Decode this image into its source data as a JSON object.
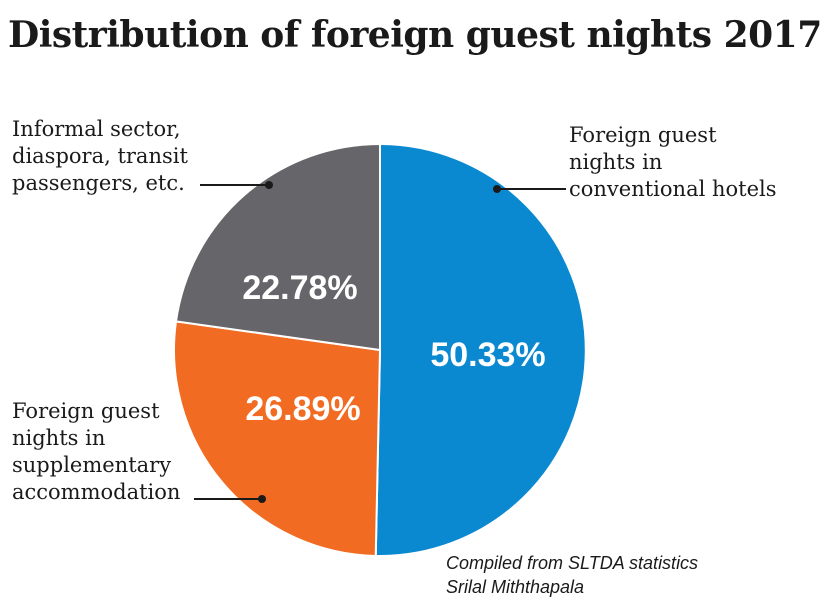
{
  "chart_data": {
    "type": "pie",
    "title": "Distribution of foreign guest nights 2017",
    "slices": [
      {
        "label_lines": [
          "Foreign guest",
          "nights in",
          "conventional hotels"
        ],
        "value": 50.33,
        "display": "50.33%",
        "color": "#0a89d1"
      },
      {
        "label_lines": [
          "Foreign guest",
          "nights in",
          "supplementary",
          "accommodation"
        ],
        "value": 26.89,
        "display": "26.89%",
        "color": "#f26b22"
      },
      {
        "label_lines": [
          "Informal sector,",
          "diaspora, transit",
          "passengers, etc."
        ],
        "value": 22.78,
        "display": "22.78%",
        "color": "#666569"
      }
    ],
    "start": "12 o'clock",
    "direction": "clockwise"
  },
  "source": {
    "line1": "Compiled from SLTDA statistics",
    "line2": "Srilal Miththapala"
  }
}
